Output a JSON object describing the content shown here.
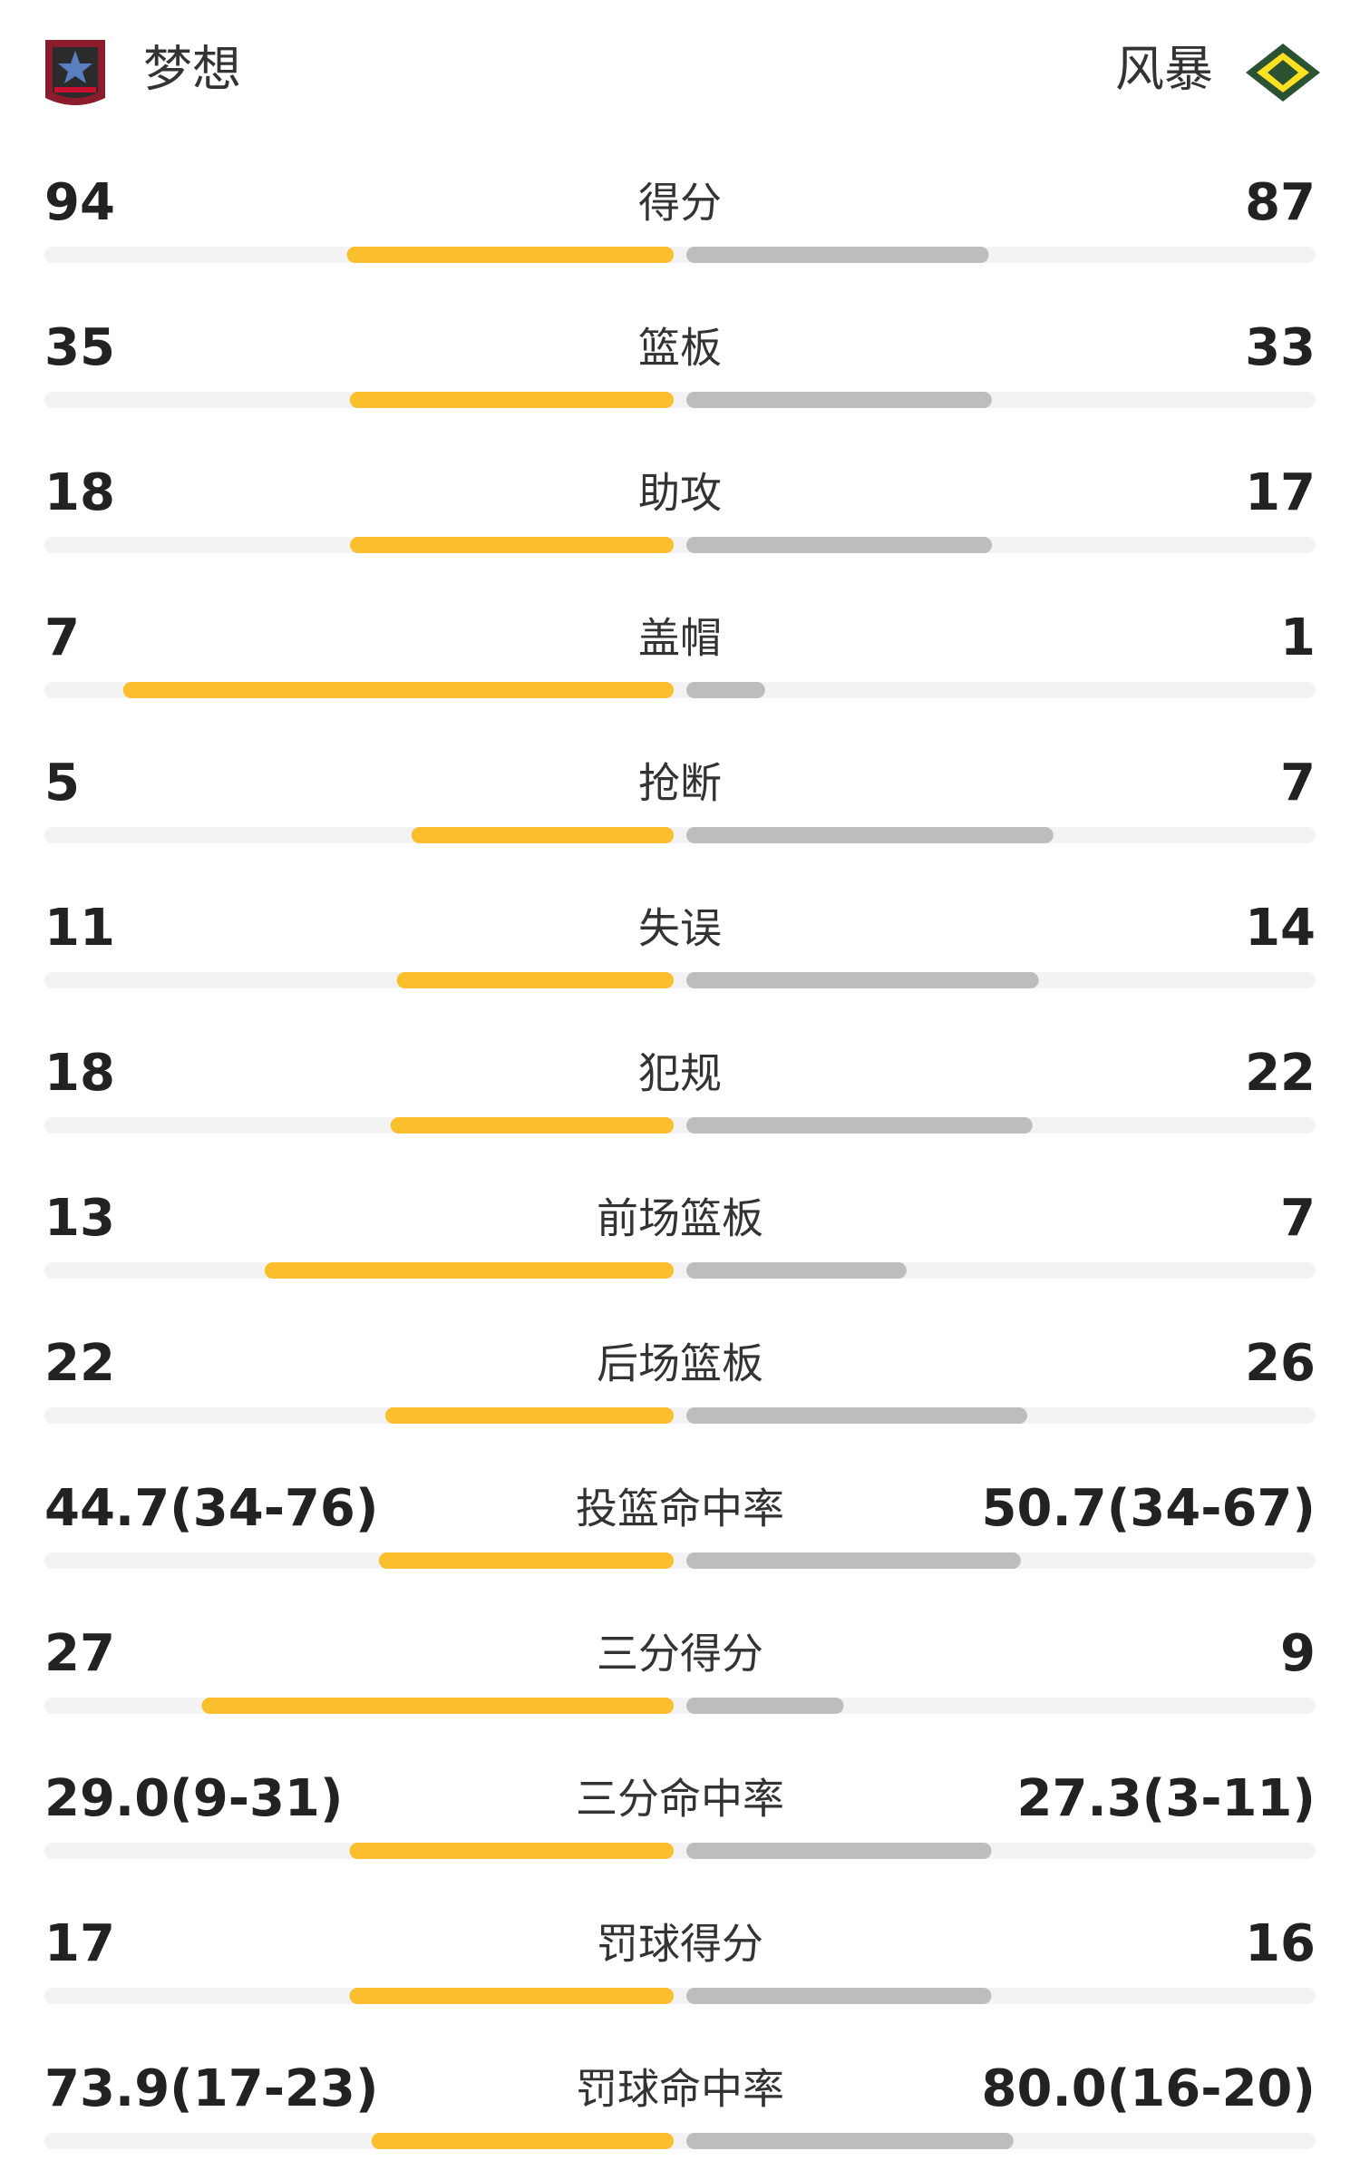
{
  "header": {
    "home": "梦想",
    "away": "风暴"
  },
  "stats": [
    {
      "label": "得分",
      "home": 94,
      "away": 87
    },
    {
      "label": "篮板",
      "home": 35,
      "away": 33
    },
    {
      "label": "助攻",
      "home": 18,
      "away": 17
    },
    {
      "label": "盖帽",
      "home": 7,
      "away": 1
    },
    {
      "label": "抢断",
      "home": 5,
      "away": 7
    },
    {
      "label": "失误",
      "home": 11,
      "away": 14
    },
    {
      "label": "犯规",
      "home": 18,
      "away": 22
    },
    {
      "label": "前场篮板",
      "home": 13,
      "away": 7
    },
    {
      "label": "后场篮板",
      "home": 22,
      "away": 26
    },
    {
      "label": "投篮命中率",
      "home": "44.7(34-76)",
      "away": "50.7(34-67)"
    },
    {
      "label": "三分得分",
      "home": 27,
      "away": 9
    },
    {
      "label": "三分命中率",
      "home": "29.0(9-31)",
      "away": "27.3(3-11)"
    },
    {
      "label": "罚球得分",
      "home": 17,
      "away": 16
    },
    {
      "label": "罚球命中率",
      "home": "73.9(17-23)",
      "away": "80.0(16-20)"
    }
  ]
}
